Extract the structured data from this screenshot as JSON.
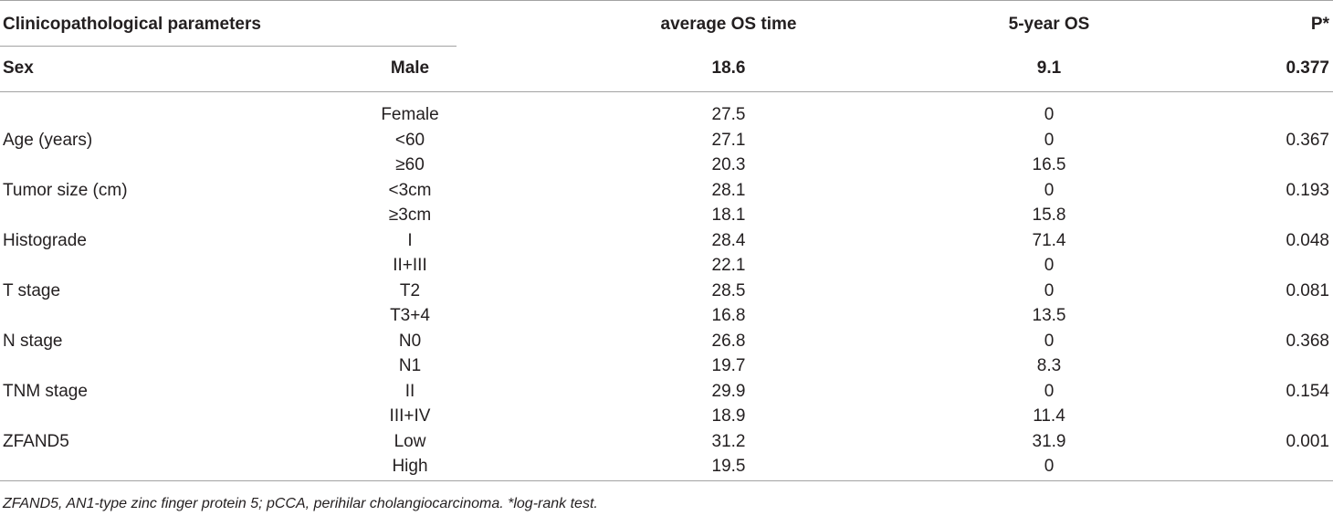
{
  "table": {
    "header": {
      "parameters": "Clinicopathological parameters",
      "avg_os": "average OS time",
      "five_year_os": "5-year OS",
      "p": "P*"
    },
    "parameters": [
      {
        "name": "Sex",
        "p": "0.377",
        "levels": [
          {
            "label": "Male",
            "avg_os": "18.6",
            "five_year_os": "9.1"
          },
          {
            "label": "Female",
            "avg_os": "27.5",
            "five_year_os": "0"
          }
        ]
      },
      {
        "name": "Age (years)",
        "p": "0.367",
        "levels": [
          {
            "label": "<60",
            "avg_os": "27.1",
            "five_year_os": "0"
          },
          {
            "label": "≥60",
            "avg_os": "20.3",
            "five_year_os": "16.5"
          }
        ]
      },
      {
        "name": "Tumor size (cm)",
        "p": "0.193",
        "levels": [
          {
            "label": "<3cm",
            "avg_os": "28.1",
            "five_year_os": "0"
          },
          {
            "label": "≥3cm",
            "avg_os": "18.1",
            "five_year_os": "15.8"
          }
        ]
      },
      {
        "name": "Histograde",
        "p": "0.048",
        "levels": [
          {
            "label": "I",
            "avg_os": "28.4",
            "five_year_os": "71.4"
          },
          {
            "label": "II+III",
            "avg_os": "22.1",
            "five_year_os": "0"
          }
        ]
      },
      {
        "name": "T stage",
        "p": "0.081",
        "levels": [
          {
            "label": "T2",
            "avg_os": "28.5",
            "five_year_os": "0"
          },
          {
            "label": "T3+4",
            "avg_os": "16.8",
            "five_year_os": "13.5"
          }
        ]
      },
      {
        "name": "N stage",
        "p": "0.368",
        "levels": [
          {
            "label": "N0",
            "avg_os": "26.8",
            "five_year_os": "0"
          },
          {
            "label": "N1",
            "avg_os": "19.7",
            "five_year_os": "8.3"
          }
        ]
      },
      {
        "name": "TNM stage",
        "p": "0.154",
        "levels": [
          {
            "label": "II",
            "avg_os": "29.9",
            "five_year_os": "0"
          },
          {
            "label": "III+IV",
            "avg_os": "18.9",
            "five_year_os": "11.4"
          }
        ]
      },
      {
        "name": "ZFAND5",
        "p": "0.001",
        "levels": [
          {
            "label": "Low",
            "avg_os": "31.2",
            "five_year_os": "31.9"
          },
          {
            "label": "High",
            "avg_os": "19.5",
            "five_year_os": "0"
          }
        ]
      }
    ]
  },
  "footnote": "ZFAND5, AN1-type zinc finger protein 5; pCCA, perihilar cholangiocarcinoma. *log-rank test."
}
